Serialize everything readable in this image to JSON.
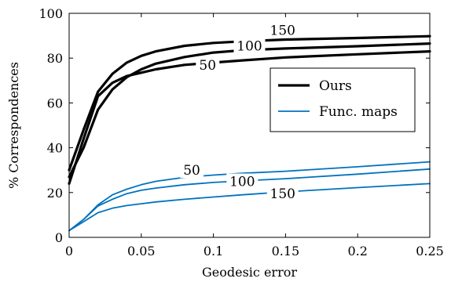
{
  "chart_data": {
    "type": "line",
    "xlabel": "Geodesic error",
    "ylabel": "% Correspondences",
    "xlim": [
      0,
      0.25
    ],
    "ylim": [
      0,
      100
    ],
    "xticks": [
      0,
      0.05,
      0.1,
      0.15,
      0.2,
      0.25
    ],
    "xtick_labels": [
      "0",
      "0.05",
      "0.1",
      "0.15",
      "0.2",
      "0.25"
    ],
    "yticks": [
      0,
      20,
      40,
      60,
      80,
      100
    ],
    "ytick_labels": [
      "0",
      "20",
      "40",
      "60",
      "80",
      "100"
    ],
    "grid": false,
    "legend": {
      "placement": "center-right",
      "entries": [
        {
          "label": "Ours",
          "color": "#000000"
        },
        {
          "label": "Func. maps",
          "color": "#0072bd"
        }
      ]
    },
    "series": [
      {
        "group": "Ours",
        "label": "50",
        "color": "#000000",
        "x": [
          0,
          0.01,
          0.02,
          0.03,
          0.04,
          0.05,
          0.06,
          0.08,
          0.1,
          0.12,
          0.15,
          0.2,
          0.25
        ],
        "y": [
          24,
          44,
          63,
          69,
          72,
          73.5,
          75,
          77,
          78,
          79,
          80.3,
          81.7,
          83
        ]
      },
      {
        "group": "Ours",
        "label": "100",
        "color": "#000000",
        "x": [
          0,
          0.01,
          0.02,
          0.03,
          0.04,
          0.05,
          0.06,
          0.08,
          0.1,
          0.12,
          0.15,
          0.2,
          0.25
        ],
        "y": [
          27,
          40,
          57,
          66,
          71.5,
          75,
          77.5,
          80.5,
          82.5,
          83.5,
          84.3,
          85.3,
          86.5
        ]
      },
      {
        "group": "Ours",
        "label": "150",
        "color": "#000000",
        "x": [
          0,
          0.01,
          0.02,
          0.03,
          0.04,
          0.05,
          0.06,
          0.08,
          0.1,
          0.12,
          0.15,
          0.2,
          0.25
        ],
        "y": [
          30,
          48,
          65,
          73,
          78,
          81,
          83,
          85.5,
          86.8,
          87.5,
          88.3,
          89,
          89.8
        ]
      },
      {
        "group": "Func. maps",
        "label": "50",
        "color": "#0072bd",
        "x": [
          0,
          0.01,
          0.02,
          0.03,
          0.04,
          0.05,
          0.06,
          0.08,
          0.1,
          0.12,
          0.15,
          0.2,
          0.25
        ],
        "y": [
          3,
          8,
          14.5,
          19,
          21.5,
          23.5,
          25,
          26.8,
          27.8,
          28.6,
          29.5,
          31.5,
          33.7
        ]
      },
      {
        "group": "Func. maps",
        "label": "100",
        "color": "#0072bd",
        "x": [
          0,
          0.01,
          0.02,
          0.03,
          0.04,
          0.05,
          0.06,
          0.08,
          0.1,
          0.12,
          0.15,
          0.2,
          0.25
        ],
        "y": [
          3,
          8,
          14,
          17,
          19.5,
          21,
          22,
          23.5,
          24.5,
          25.2,
          26.2,
          28.2,
          30.5
        ]
      },
      {
        "group": "Func. maps",
        "label": "150",
        "color": "#0072bd",
        "x": [
          0,
          0.01,
          0.02,
          0.03,
          0.04,
          0.05,
          0.06,
          0.08,
          0.1,
          0.12,
          0.15,
          0.2,
          0.25
        ],
        "y": [
          3,
          7,
          11,
          13,
          14.2,
          15,
          15.8,
          17,
          18,
          19,
          20.3,
          22.2,
          24
        ]
      }
    ],
    "curve_labels": [
      {
        "text": "150",
        "x": 0.148,
        "y": 92.5
      },
      {
        "text": "100",
        "x": 0.125,
        "y": 85.5
      },
      {
        "text": "50",
        "x": 0.096,
        "y": 77
      },
      {
        "text": "50",
        "x": 0.085,
        "y": 30
      },
      {
        "text": "100",
        "x": 0.12,
        "y": 25
      },
      {
        "text": "150",
        "x": 0.148,
        "y": 19.5
      }
    ]
  }
}
